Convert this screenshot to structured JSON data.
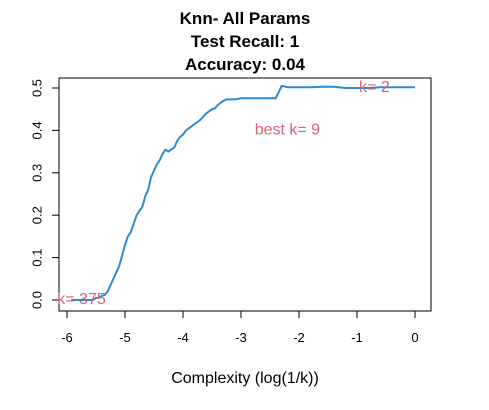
{
  "chart_data": {
    "type": "line",
    "title_lines": [
      "Knn- All Params",
      "Test Recall:  1",
      "Accuracy:  0.04"
    ],
    "xlabel": "Complexity (log(1/k))",
    "ylabel": "",
    "xlim": [
      -6.0,
      0.0
    ],
    "ylim": [
      0.0,
      0.5
    ],
    "x_ticks": [
      -6,
      -5,
      -4,
      -3,
      -2,
      -1,
      0
    ],
    "x_tick_labels": [
      "-6",
      "-5",
      "-4",
      "-3",
      "-2",
      "-1",
      "0"
    ],
    "y_ticks": [
      0.0,
      0.1,
      0.2,
      0.3,
      0.4,
      0.5
    ],
    "y_tick_labels": [
      "0.0",
      "0.1",
      "0.2",
      "0.3",
      "0.4",
      "0.5"
    ],
    "grid": false,
    "series": [
      {
        "color": "#2b8bd4",
        "x": [
          -5.93,
          -5.6,
          -5.55,
          -5.5,
          -5.45,
          -5.4,
          -5.35,
          -5.3,
          -5.25,
          -5.2,
          -5.15,
          -5.1,
          -5.05,
          -5.0,
          -4.95,
          -4.9,
          -4.85,
          -4.8,
          -4.75,
          -4.7,
          -4.65,
          -4.6,
          -4.55,
          -4.5,
          -4.45,
          -4.4,
          -4.35,
          -4.3,
          -4.25,
          -4.2,
          -4.15,
          -4.1,
          -4.05,
          -4.0,
          -3.95,
          -3.9,
          -3.85,
          -3.8,
          -3.7,
          -3.6,
          -3.5,
          -3.45,
          -3.4,
          -3.35,
          -3.3,
          -3.25,
          -3.2,
          -3.1,
          -3.0,
          -2.9,
          -2.8,
          -2.7,
          -2.6,
          -2.5,
          -2.4,
          -2.35,
          -2.3,
          -2.2,
          -2.1,
          -2.0,
          -1.8,
          -1.6,
          -1.4,
          -1.2,
          -1.0,
          -0.8,
          -0.6,
          -0.4,
          -0.2,
          0.0
        ],
        "y": [
          0.0,
          0.0,
          0.0,
          0.005,
          0.005,
          0.01,
          0.012,
          0.02,
          0.035,
          0.05,
          0.065,
          0.08,
          0.105,
          0.13,
          0.15,
          0.16,
          0.18,
          0.2,
          0.21,
          0.22,
          0.245,
          0.26,
          0.29,
          0.305,
          0.32,
          0.33,
          0.345,
          0.355,
          0.35,
          0.355,
          0.36,
          0.375,
          0.385,
          0.39,
          0.4,
          0.405,
          0.41,
          0.415,
          0.425,
          0.44,
          0.45,
          0.452,
          0.46,
          0.465,
          0.47,
          0.473,
          0.473,
          0.473,
          0.476,
          0.476,
          0.476,
          0.476,
          0.476,
          0.476,
          0.476,
          0.49,
          0.505,
          0.502,
          0.502,
          0.502,
          0.502,
          0.503,
          0.503,
          0.5,
          0.5,
          0.5,
          0.502,
          0.502,
          0.502,
          0.502
        ]
      }
    ],
    "annotations": [
      {
        "text": "k= 375",
        "x": -5.75,
        "y": 0.0,
        "color": "#d95f78"
      },
      {
        "text": "best k= 9",
        "x": -2.2,
        "y": 0.4,
        "color": "#d95f78"
      },
      {
        "text": "k= 2",
        "x": -0.7,
        "y": 0.5,
        "color": "#d95f78"
      }
    ]
  }
}
